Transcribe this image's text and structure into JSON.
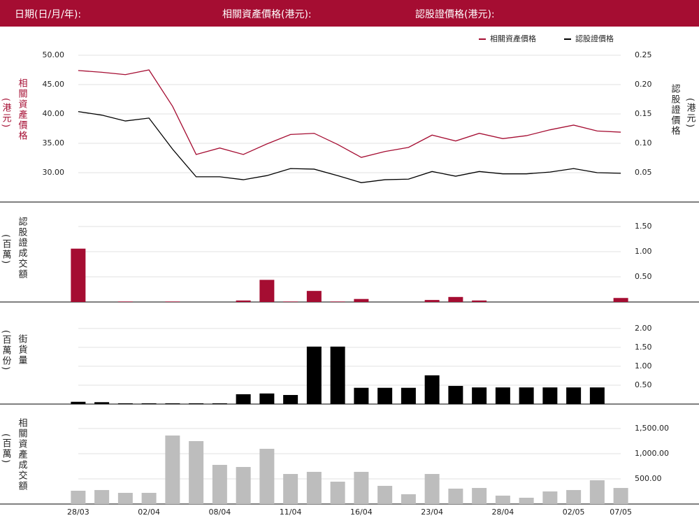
{
  "header": {
    "date_label": "日期(日/月/年):",
    "asset_price_label": "相關資產價格(港元):",
    "warrant_price_label": "認股證價格(港元):"
  },
  "chart_data": [
    {
      "type": "line",
      "y_label": "相關資產價格",
      "y_unit": "(港元)",
      "y2_label": "認股證價格",
      "y2_unit": "(港元)",
      "ylim": [
        25,
        50
      ],
      "yticks": [
        {
          "value": 30,
          "label": "30.00"
        },
        {
          "value": 35,
          "label": "35.00"
        },
        {
          "value": 40,
          "label": "40.00"
        },
        {
          "value": 45,
          "label": "45.00"
        },
        {
          "value": 50,
          "label": "50.00"
        }
      ],
      "y2lim": [
        0,
        0.25
      ],
      "y2ticks": [
        0.05,
        {
          "value": 0.1,
          "label": "0.10"
        },
        0.15,
        {
          "value": 0.2,
          "label": "0.20"
        },
        0.25
      ],
      "grid": true,
      "legend": "top-right",
      "series": [
        {
          "name": "相關資產價格",
          "color": "#a50d32",
          "values": [
            47.4,
            47.1,
            46.7,
            47.5,
            41.3,
            33.1,
            34.2,
            33.1,
            34.9,
            36.5,
            36.7,
            34.8,
            32.6,
            33.6,
            34.3,
            36.4,
            35.4,
            36.7,
            35.8,
            36.3,
            37.3,
            38.1,
            37.1,
            36.9
          ]
        },
        {
          "name": "認股證價格",
          "color": "#000000",
          "axis": "y2",
          "values": [
            0.154,
            0.148,
            0.138,
            0.143,
            0.09,
            0.043,
            0.043,
            0.038,
            0.045,
            0.057,
            0.056,
            0.045,
            0.033,
            0.038,
            0.039,
            0.052,
            0.044,
            0.052,
            0.048,
            0.048,
            0.051,
            0.057,
            0.05,
            0.049
          ]
        }
      ]
    },
    {
      "type": "bar",
      "y_label": "認股證成交額",
      "y_unit": "(百萬)",
      "color": "#a50d32",
      "grid": true,
      "ylim": [
        0,
        2
      ],
      "yticks": [
        {
          "value": 0.5,
          "label": "0.50"
        },
        {
          "value": 1,
          "label": "1.00"
        },
        {
          "value": 1.5,
          "label": "1.50"
        }
      ],
      "values": [
        1.06,
        0,
        0.01,
        0,
        0.01,
        0,
        0,
        0.03,
        0.44,
        0.01,
        0.22,
        0.01,
        0.06,
        0,
        0,
        0.04,
        0.1,
        0.03,
        0,
        0,
        0,
        0,
        0,
        0.08
      ]
    },
    {
      "type": "bar",
      "y_label": "街貨量",
      "y_unit": "(百萬份)",
      "color": "#000000",
      "grid": true,
      "ylim": [
        0,
        2.7
      ],
      "yticks": [
        {
          "value": 0.5,
          "label": "0.50"
        },
        {
          "value": 1,
          "label": "1.00"
        },
        {
          "value": 1.5,
          "label": "1.50"
        },
        {
          "value": 2,
          "label": "2.00"
        }
      ],
      "values": [
        0.06,
        0.05,
        0.02,
        0.02,
        0.02,
        0.02,
        0.02,
        0.26,
        0.28,
        0.24,
        1.52,
        1.52,
        0.43,
        0.43,
        0.43,
        0.76,
        0.48,
        0.44,
        0.44,
        0.44,
        0.44,
        0.44,
        0.44,
        null
      ]
    },
    {
      "type": "bar",
      "y_label": "相關資產成交額",
      "y_unit": "(百萬)",
      "color": "#bdbdbd",
      "grid": true,
      "ylim": [
        0,
        2000
      ],
      "yticks": [
        {
          "value": 500,
          "label": "500.00"
        },
        {
          "value": 1000,
          "label": "1,000.00"
        },
        {
          "value": 1500,
          "label": "1,500.00"
        }
      ],
      "categories": [
        "28/03",
        null,
        null,
        "02/04",
        null,
        null,
        "08/04",
        null,
        null,
        "11/04",
        null,
        null,
        "16/04",
        null,
        null,
        "23/04",
        null,
        null,
        "28/04",
        null,
        null,
        "02/05",
        null,
        "07/05"
      ],
      "values": [
        264,
        278,
        222,
        222,
        1361,
        1250,
        778,
        736,
        1097,
        597,
        639,
        444,
        639,
        361,
        194,
        597,
        306,
        319,
        167,
        125,
        250,
        278,
        472,
        319
      ]
    }
  ]
}
